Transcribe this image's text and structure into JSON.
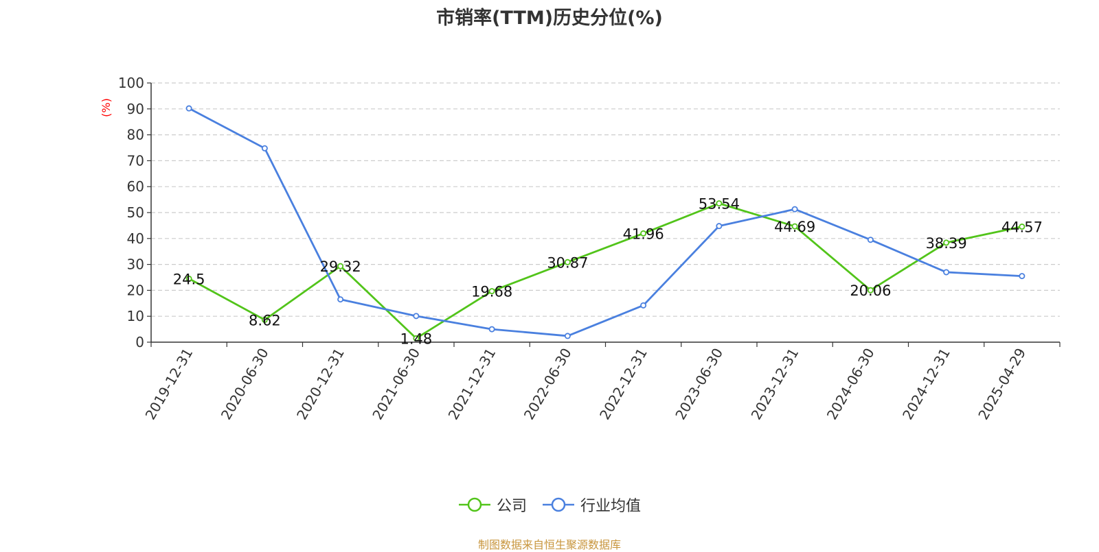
{
  "chart_data": {
    "type": "line",
    "title": "市销率(TTM)历史分位(%)",
    "ylabel": "(%)",
    "xlabel": "",
    "ylim": [
      0,
      100
    ],
    "yticks": [
      0,
      10,
      20,
      30,
      40,
      50,
      60,
      70,
      80,
      90,
      100
    ],
    "categories": [
      "2019-12-31",
      "2020-06-30",
      "2020-12-31",
      "2021-06-30",
      "2021-12-31",
      "2022-06-30",
      "2022-12-31",
      "2023-06-30",
      "2023-12-31",
      "2024-06-30",
      "2024-12-31",
      "2025-04-29"
    ],
    "series": [
      {
        "name": "公司",
        "color": "#52c41a",
        "values": [
          24.5,
          8.62,
          29.32,
          1.48,
          19.68,
          30.87,
          41.96,
          53.54,
          44.69,
          20.06,
          38.39,
          44.57
        ],
        "labels": [
          "24.5",
          "8.62",
          "29.32",
          "1.48",
          "19.68",
          "30.87",
          "41.96",
          "53.54",
          "44.69",
          "20.06",
          "38.39",
          "44.57"
        ]
      },
      {
        "name": "行业均值",
        "color": "#4a80df",
        "values": [
          90.2,
          74.8,
          16.5,
          10.1,
          5.0,
          2.4,
          14.2,
          44.8,
          51.3,
          39.5,
          27.0,
          25.5
        ]
      }
    ],
    "grid": true,
    "grid_style": "dashed",
    "legend_position": "bottom",
    "source": "制图数据来自恒生聚源数据库"
  }
}
